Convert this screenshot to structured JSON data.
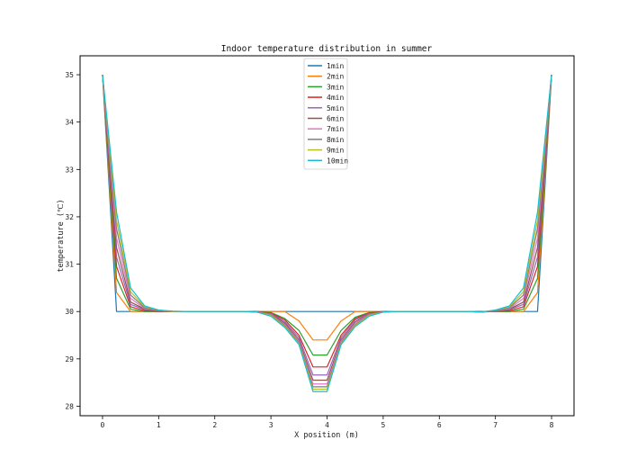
{
  "chart_data": {
    "type": "line",
    "title": "Indoor temperature distribution in summer",
    "xlabel": "X position (m)",
    "ylabel": "temperature (℃)",
    "xlim": [
      -0.4,
      8.4
    ],
    "ylim": [
      27.8,
      35.4
    ],
    "xticks": [
      0,
      1,
      2,
      3,
      4,
      5,
      6,
      7,
      8
    ],
    "yticks": [
      28,
      29,
      30,
      31,
      32,
      33,
      34,
      35
    ],
    "legend_position": "upper-center",
    "grid": false,
    "x": [
      0,
      0.25,
      0.5,
      0.75,
      1.0,
      1.25,
      1.5,
      1.75,
      2.0,
      2.25,
      2.5,
      2.75,
      3.0,
      3.25,
      3.5,
      3.75,
      4.0,
      4.25,
      4.5,
      4.75,
      5.0,
      5.25,
      5.5,
      5.75,
      6.0,
      6.25,
      6.5,
      6.75,
      7.0,
      7.25,
      7.5,
      7.75,
      8.0
    ],
    "series": [
      {
        "name": "1min",
        "color": "#1f77b4",
        "values": [
          35,
          30,
          30,
          30,
          30,
          30,
          30,
          30,
          30,
          30,
          30,
          30,
          30,
          30,
          30,
          30,
          30,
          30,
          30,
          30,
          30,
          30,
          30,
          30,
          30,
          30,
          30,
          30,
          30,
          30,
          30,
          30,
          35
        ]
      },
      {
        "name": "2min",
        "color": "#ff7f0e",
        "values": [
          35,
          30.4,
          30,
          30,
          30,
          30,
          30,
          30,
          30,
          30,
          30,
          30,
          30,
          30,
          29.8,
          29.4,
          29.4,
          29.8,
          30,
          30,
          30,
          30,
          30,
          30,
          30,
          30,
          30,
          30,
          30,
          30,
          30,
          30.4,
          35
        ]
      },
      {
        "name": "3min",
        "color": "#2ca02c",
        "values": [
          35,
          30.7,
          30.05,
          30,
          30,
          30,
          30,
          30,
          30,
          30,
          30,
          30,
          29.98,
          29.85,
          29.6,
          29.08,
          29.08,
          29.6,
          29.88,
          29.98,
          30,
          30,
          30,
          30,
          30,
          30,
          30,
          30,
          30,
          30,
          30.05,
          30.7,
          35
        ]
      },
      {
        "name": "4min",
        "color": "#d62728",
        "values": [
          35,
          30.95,
          30.1,
          30.02,
          30,
          30,
          30,
          30,
          30,
          30,
          30,
          30,
          29.97,
          29.82,
          29.5,
          28.83,
          28.83,
          29.5,
          29.85,
          29.97,
          30,
          30,
          30,
          30,
          30,
          30,
          30,
          30,
          30,
          30.02,
          30.1,
          30.95,
          35
        ]
      },
      {
        "name": "5min",
        "color": "#9467bd",
        "values": [
          35,
          31.15,
          30.15,
          30.04,
          30.01,
          30,
          30,
          30,
          30,
          30,
          30,
          29.99,
          29.96,
          29.78,
          29.45,
          28.66,
          28.66,
          29.45,
          29.82,
          29.96,
          29.99,
          30,
          30,
          30,
          30,
          30,
          30,
          29.99,
          30,
          30.04,
          30.15,
          31.15,
          35
        ]
      },
      {
        "name": "6min",
        "color": "#8c564b",
        "values": [
          35,
          31.35,
          30.2,
          30.05,
          30.01,
          30,
          30,
          30,
          30,
          30,
          30,
          29.99,
          29.95,
          29.75,
          29.4,
          28.55,
          28.55,
          29.4,
          29.78,
          29.95,
          29.99,
          30,
          30,
          30,
          30,
          30,
          30,
          29.99,
          30.01,
          30.05,
          30.2,
          31.35,
          35
        ]
      },
      {
        "name": "7min",
        "color": "#e377c2",
        "values": [
          35,
          31.55,
          30.28,
          30.06,
          30.02,
          30,
          30,
          30,
          30,
          30,
          30,
          29.99,
          29.94,
          29.72,
          29.37,
          28.47,
          28.47,
          29.37,
          29.75,
          29.94,
          29.99,
          30,
          30,
          30,
          30,
          30,
          30,
          29.99,
          30.02,
          30.06,
          30.28,
          31.55,
          35
        ]
      },
      {
        "name": "8min",
        "color": "#7f7f7f",
        "values": [
          35,
          31.75,
          30.35,
          30.08,
          30.02,
          30,
          30,
          30,
          30,
          30,
          30,
          29.99,
          29.93,
          29.7,
          29.34,
          28.41,
          28.41,
          29.34,
          29.72,
          29.93,
          29.99,
          30,
          30,
          30,
          30,
          30,
          30,
          29.99,
          30.02,
          30.08,
          30.35,
          31.75,
          35
        ]
      },
      {
        "name": "9min",
        "color": "#bcbd22",
        "values": [
          35,
          31.92,
          30.42,
          30.1,
          30.03,
          30,
          30,
          30,
          30,
          30,
          30,
          29.99,
          29.92,
          29.68,
          29.32,
          28.36,
          28.36,
          29.32,
          29.7,
          29.92,
          29.99,
          30,
          30,
          30,
          30,
          30,
          30,
          29.99,
          30.03,
          30.1,
          30.42,
          31.92,
          35
        ]
      },
      {
        "name": "10min",
        "color": "#17becf",
        "values": [
          35,
          32.1,
          30.5,
          30.12,
          30.03,
          30.01,
          30,
          30,
          30,
          30,
          30,
          29.99,
          29.9,
          29.66,
          29.3,
          28.31,
          28.31,
          29.3,
          29.68,
          29.9,
          29.99,
          30,
          30,
          30,
          30,
          30,
          30,
          29.99,
          30.03,
          30.12,
          30.5,
          32.1,
          35
        ]
      }
    ]
  }
}
